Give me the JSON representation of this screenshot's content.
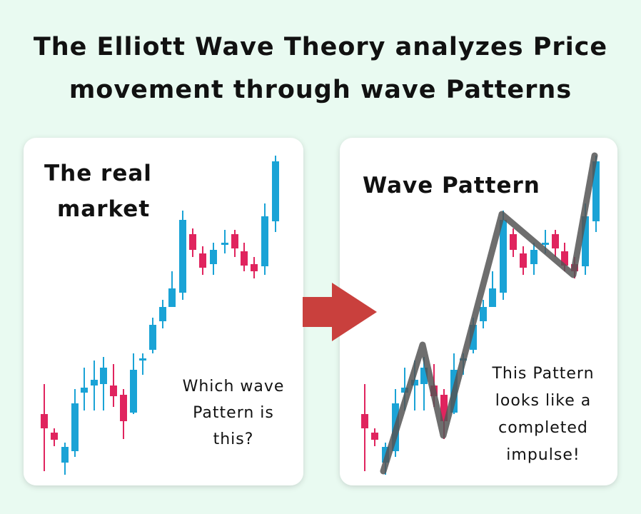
{
  "title": {
    "lines": [
      "The Elliott Wave Theory analyzes Price",
      "movement through wave Patterns"
    ]
  },
  "left_panel": {
    "label_lines": [
      "The real",
      "market"
    ],
    "question_lines": [
      "Which wave",
      "Pattern is",
      "this?"
    ]
  },
  "right_panel": {
    "label": "Wave Pattern",
    "note_lines": [
      "This Pattern",
      "looks like a",
      "completed",
      "impulse!"
    ]
  }
}
